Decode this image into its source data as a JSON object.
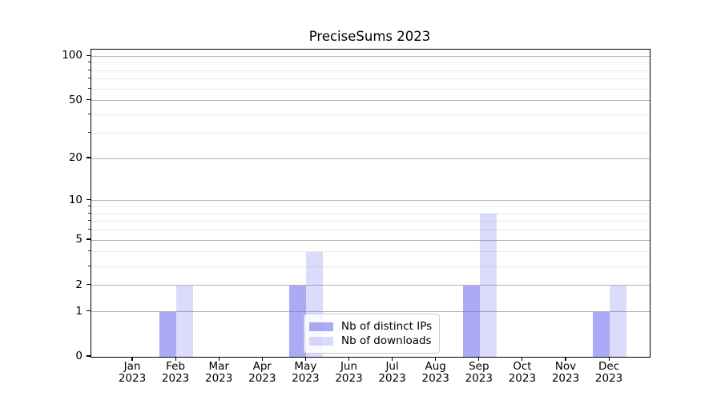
{
  "title": "PreciseSums 2023",
  "chart_data": {
    "type": "bar",
    "title": "PreciseSums 2023",
    "categories": [
      "Jan 2023",
      "Feb 2023",
      "Mar 2023",
      "Apr 2023",
      "May 2023",
      "Jun 2023",
      "Jul 2023",
      "Aug 2023",
      "Sep 2023",
      "Oct 2023",
      "Nov 2023",
      "Dec 2023"
    ],
    "series": [
      {
        "name": "Nb of distinct IPs",
        "color": "rgba(105,105,240,0.57)",
        "values": [
          0,
          1,
          0,
          0,
          2,
          0,
          0,
          0,
          2,
          0,
          0,
          1
        ]
      },
      {
        "name": "Nb of downloads",
        "color": "rgba(105,105,240,0.24)",
        "values": [
          0,
          2,
          0,
          0,
          4,
          0,
          0,
          0,
          8,
          0,
          0,
          2
        ]
      }
    ],
    "y_axis": {
      "scale": "log10(1+x)",
      "major_ticks": [
        0,
        1,
        2,
        5,
        10,
        20,
        50,
        100
      ],
      "minor_ticks": [
        3,
        4,
        6,
        7,
        8,
        9,
        30,
        40,
        60,
        70,
        80,
        90
      ],
      "ylim": [
        0,
        111
      ]
    },
    "xlabel": "",
    "ylabel": "",
    "grid": true,
    "legend_position": "lower center"
  },
  "colors": {
    "major_grid": "#b3b3b3",
    "minor_grid": "#e8e8e8",
    "axis": "#000000",
    "bar_distinct_ips_onwhite": "#aaaaf8",
    "bar_downloads_onwhite": "#dbdbfa"
  }
}
